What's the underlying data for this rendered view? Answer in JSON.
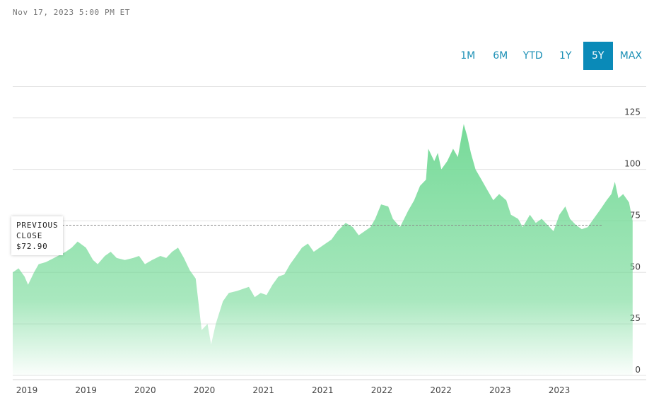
{
  "header": {
    "timestamp": "Nov 17, 2023 5:00 PM ET"
  },
  "range_selector": {
    "options": [
      "1M",
      "6M",
      "YTD",
      "1Y",
      "5Y",
      "MAX"
    ],
    "active": "5Y",
    "accent_color": "#0a8ab8"
  },
  "tooltip": {
    "line1": "PREVIOUS",
    "line2": "CLOSE",
    "value": "$72.90"
  },
  "chart_data": {
    "type": "area",
    "title": "",
    "xlabel": "",
    "ylabel": "",
    "ylim": [
      0,
      140
    ],
    "y_ticks": [
      0,
      25,
      50,
      75,
      100,
      125
    ],
    "x_tick_labels": [
      "2019",
      "2019",
      "2020",
      "2020",
      "2021",
      "2021",
      "2022",
      "2022",
      "2023",
      "2023"
    ],
    "x_range": [
      2018.9,
      2023.9
    ],
    "reference_line": {
      "label": "PREVIOUS CLOSE",
      "value": 72.9
    },
    "grid": true,
    "fill_color": "#6fd893",
    "series": [
      {
        "values": [
          [
            2018.9,
            50
          ],
          [
            2018.95,
            52
          ],
          [
            2019.0,
            48
          ],
          [
            2019.03,
            44
          ],
          [
            2019.08,
            50
          ],
          [
            2019.12,
            54
          ],
          [
            2019.18,
            55
          ],
          [
            2019.25,
            57
          ],
          [
            2019.35,
            60
          ],
          [
            2019.4,
            62
          ],
          [
            2019.45,
            65
          ],
          [
            2019.52,
            62
          ],
          [
            2019.58,
            56
          ],
          [
            2019.62,
            54
          ],
          [
            2019.68,
            58
          ],
          [
            2019.73,
            60
          ],
          [
            2019.78,
            57
          ],
          [
            2019.85,
            56
          ],
          [
            2019.92,
            57
          ],
          [
            2019.97,
            58
          ],
          [
            2020.02,
            54
          ],
          [
            2020.08,
            56
          ],
          [
            2020.15,
            58
          ],
          [
            2020.2,
            57
          ],
          [
            2020.25,
            60
          ],
          [
            2020.3,
            62
          ],
          [
            2020.35,
            57
          ],
          [
            2020.4,
            51
          ],
          [
            2020.45,
            47
          ],
          [
            2020.5,
            22
          ],
          [
            2020.55,
            25
          ],
          [
            2020.58,
            15
          ],
          [
            2020.62,
            25
          ],
          [
            2020.68,
            36
          ],
          [
            2020.73,
            40
          ],
          [
            2020.8,
            41
          ],
          [
            2020.85,
            42
          ],
          [
            2020.9,
            43
          ],
          [
            2020.95,
            38
          ],
          [
            2021.0,
            40
          ],
          [
            2021.05,
            39
          ],
          [
            2021.1,
            44
          ],
          [
            2021.15,
            48
          ],
          [
            2021.2,
            49
          ],
          [
            2021.25,
            54
          ],
          [
            2021.3,
            58
          ],
          [
            2021.35,
            62
          ],
          [
            2021.4,
            64
          ],
          [
            2021.45,
            60
          ],
          [
            2021.5,
            62
          ],
          [
            2021.55,
            64
          ],
          [
            2021.6,
            66
          ],
          [
            2021.65,
            70
          ],
          [
            2021.72,
            74
          ],
          [
            2021.78,
            72
          ],
          [
            2021.83,
            68
          ],
          [
            2021.88,
            70
          ],
          [
            2021.93,
            72
          ],
          [
            2021.97,
            76
          ],
          [
            2022.02,
            83
          ],
          [
            2022.08,
            82
          ],
          [
            2022.12,
            76
          ],
          [
            2022.18,
            72
          ],
          [
            2022.25,
            80
          ],
          [
            2022.3,
            85
          ],
          [
            2022.35,
            92
          ],
          [
            2022.4,
            95
          ],
          [
            2022.42,
            110
          ],
          [
            2022.47,
            104
          ],
          [
            2022.5,
            108
          ],
          [
            2022.53,
            100
          ],
          [
            2022.58,
            104
          ],
          [
            2022.63,
            110
          ],
          [
            2022.67,
            106
          ],
          [
            2022.72,
            122
          ],
          [
            2022.75,
            116
          ],
          [
            2022.78,
            108
          ],
          [
            2022.82,
            100
          ],
          [
            2022.87,
            95
          ],
          [
            2022.92,
            90
          ],
          [
            2022.97,
            85
          ],
          [
            2023.02,
            88
          ],
          [
            2023.08,
            85
          ],
          [
            2023.12,
            78
          ],
          [
            2023.18,
            76
          ],
          [
            2023.22,
            72
          ],
          [
            2023.28,
            78
          ],
          [
            2023.33,
            74
          ],
          [
            2023.38,
            76
          ],
          [
            2023.43,
            73
          ],
          [
            2023.48,
            70
          ],
          [
            2023.53,
            78
          ],
          [
            2023.58,
            82
          ],
          [
            2023.62,
            76
          ],
          [
            2023.67,
            73
          ],
          [
            2023.72,
            71
          ],
          [
            2023.77,
            72
          ],
          [
            2023.82,
            76
          ],
          [
            2023.87,
            80
          ],
          [
            2023.93,
            85
          ],
          [
            2023.97,
            88
          ],
          [
            2024.0,
            94
          ],
          [
            2024.03,
            86
          ],
          [
            2024.07,
            88
          ],
          [
            2024.12,
            84
          ],
          [
            2024.15,
            75
          ]
        ]
      }
    ]
  }
}
